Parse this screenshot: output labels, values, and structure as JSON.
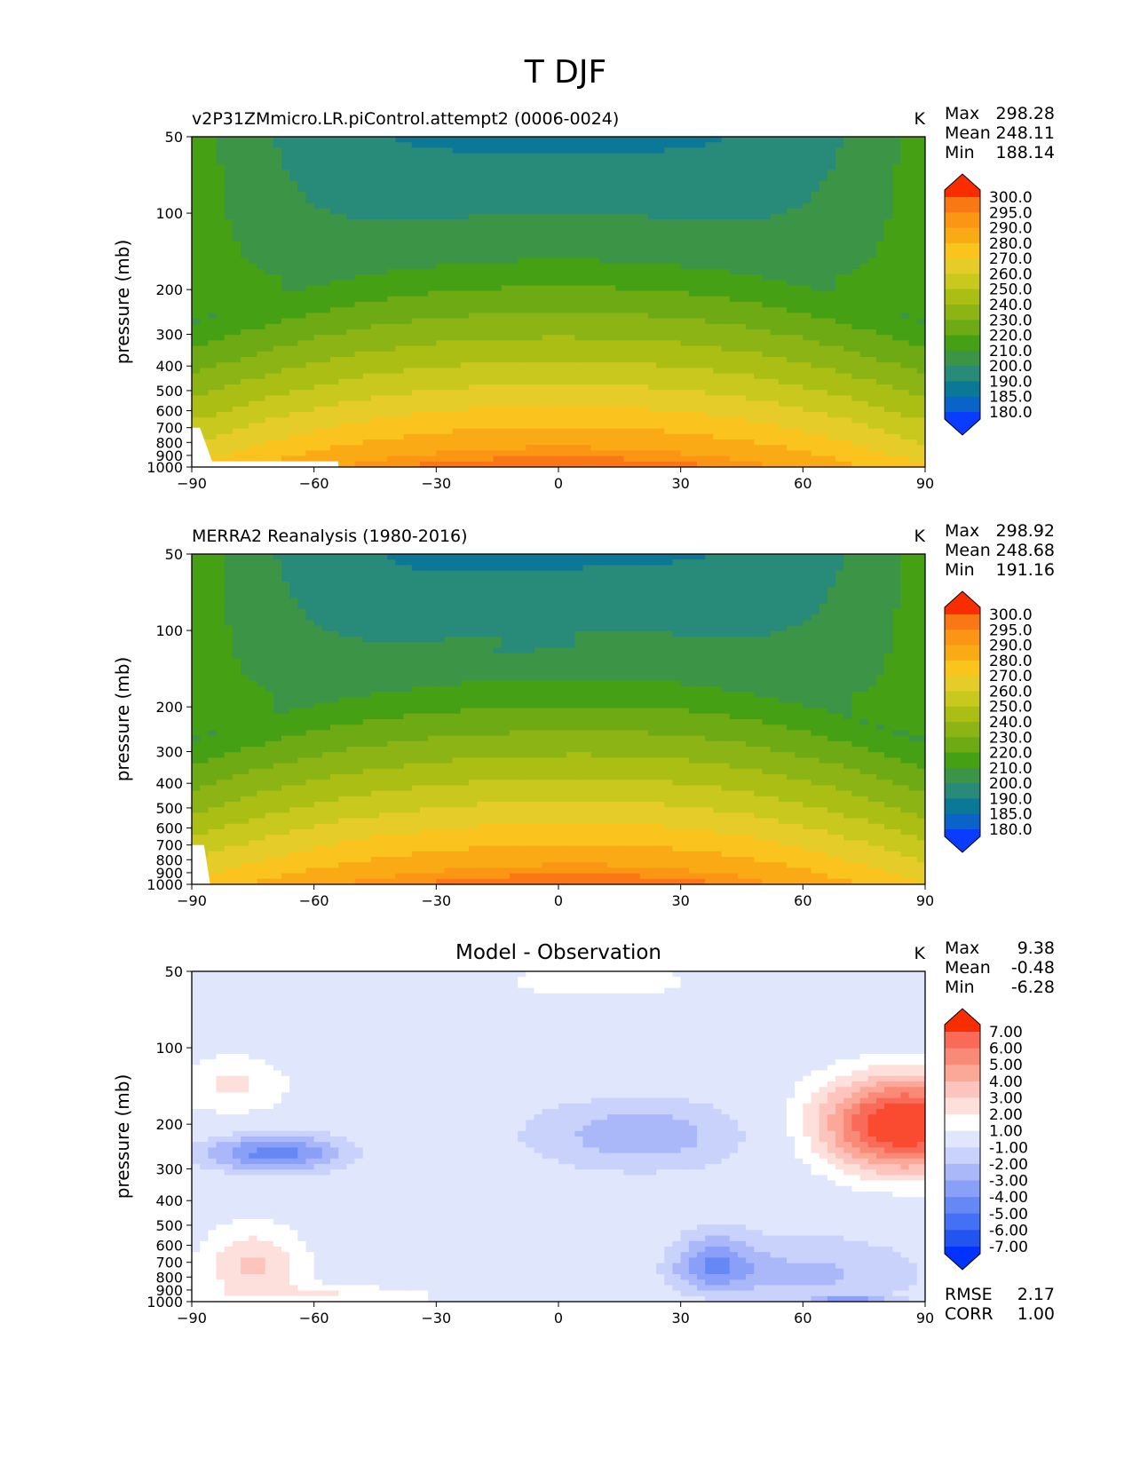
{
  "figure": {
    "title": "T DJF",
    "xticks": [
      "−90",
      "−60",
      "−30",
      "0",
      "30",
      "60",
      "90"
    ],
    "yticks": [
      "50",
      "100",
      "200",
      "300",
      "400",
      "500",
      "600",
      "700",
      "800",
      "900",
      "1000"
    ],
    "ylabel": "pressure (mb)",
    "units": "K"
  },
  "chart_data": [
    {
      "type": "heatmap",
      "title": "v2P31ZMmicro.LR.piControl.attempt2 (0006-0024)",
      "units": "K",
      "xlabel": "",
      "ylabel": "pressure (mb)",
      "xlim": [
        -90,
        90
      ],
      "ylim": [
        1000,
        50
      ],
      "stats": [
        {
          "label": "Max",
          "value": "298.28"
        },
        {
          "label": "Mean",
          "value": "248.11"
        },
        {
          "label": "Min",
          "value": "188.14"
        }
      ],
      "colorbar": {
        "levels": [
          "180.0",
          "185.0",
          "190.0",
          "200.0",
          "210.0",
          "220.0",
          "230.0",
          "240.0",
          "250.0",
          "260.0",
          "270.0",
          "280.0",
          "290.0",
          "295.0",
          "300.0"
        ],
        "colors": [
          "#0a3cff",
          "#0a64c8",
          "#0a7896",
          "#288a78",
          "#3c9446",
          "#46a014",
          "#6eaa14",
          "#8cb414",
          "#aabe14",
          "#c8c81e",
          "#e6cc28",
          "#fac31e",
          "#faaa14",
          "#fa9614",
          "#fa7814",
          "#fa5a0a",
          "#fa2d00"
        ]
      }
    },
    {
      "type": "heatmap",
      "title": "MERRA2 Reanalysis (1980-2016)",
      "units": "K",
      "xlabel": "",
      "ylabel": "pressure (mb)",
      "xlim": [
        -90,
        90
      ],
      "ylim": [
        1000,
        50
      ],
      "stats": [
        {
          "label": "Max",
          "value": "298.92"
        },
        {
          "label": "Mean",
          "value": "248.68"
        },
        {
          "label": "Min",
          "value": "191.16"
        }
      ],
      "colorbar": {
        "levels": [
          "180.0",
          "185.0",
          "190.0",
          "200.0",
          "210.0",
          "220.0",
          "230.0",
          "240.0",
          "250.0",
          "260.0",
          "270.0",
          "280.0",
          "290.0",
          "295.0",
          "300.0"
        ],
        "colors": [
          "#0a3cff",
          "#0a64c8",
          "#0a7896",
          "#288a78",
          "#3c9446",
          "#46a014",
          "#6eaa14",
          "#8cb414",
          "#aabe14",
          "#c8c81e",
          "#e6cc28",
          "#fac31e",
          "#faaa14",
          "#fa9614",
          "#fa7814",
          "#fa5a0a",
          "#fa2d00"
        ]
      }
    },
    {
      "type": "heatmap",
      "title": "Model - Observation",
      "units": "K",
      "xlabel": "",
      "ylabel": "pressure (mb)",
      "xlim": [
        -90,
        90
      ],
      "ylim": [
        1000,
        50
      ],
      "stats": [
        {
          "label": "Max",
          "value": "9.38"
        },
        {
          "label": "Mean",
          "value": "-0.48"
        },
        {
          "label": "Min",
          "value": "-6.28"
        }
      ],
      "extra_stats": [
        {
          "label": "RMSE",
          "value": "2.17"
        },
        {
          "label": "CORR",
          "value": "1.00"
        }
      ],
      "colorbar": {
        "levels": [
          "-7.00",
          "-6.00",
          "-5.00",
          "-4.00",
          "-3.00",
          "-2.00",
          "-1.00",
          "1.00",
          "2.00",
          "3.00",
          "4.00",
          "5.00",
          "6.00",
          "7.00"
        ],
        "colors": [
          "#0033ff",
          "#2255f0",
          "#4470f5",
          "#6688f5",
          "#8aa0f8",
          "#aab8fa",
          "#c8d2fa",
          "#e0e6fc",
          "#ffffff",
          "#fde0dc",
          "#fcc4bc",
          "#fca898",
          "#fa8a78",
          "#fa6a58",
          "#fa4a30",
          "#fa2d00"
        ]
      }
    }
  ]
}
